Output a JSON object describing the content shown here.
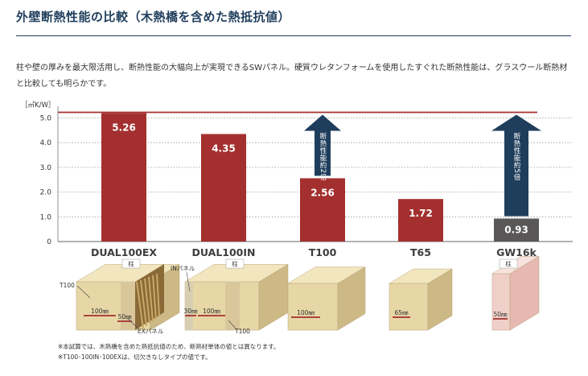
{
  "header": {
    "title": "外壁断熱性能の比較（木熱橋を含めた熱抵抗値）",
    "intro": "柱や壁の厚みを最大限活用し、断熱性能の大幅向上が実現できるSWパネル。硬質ウレタンフォームを使用したすぐれた断熱性能は、グラスウール断熱材と比較しても明らかです。"
  },
  "chart_data": {
    "type": "bar",
    "ylabel": "［㎡K/W］",
    "ylim": [
      0,
      5.2
    ],
    "yticks": [
      "0",
      "1.0",
      "2.0",
      "3.0",
      "4.0",
      "5.0"
    ],
    "grid": true,
    "reference_line": 5.26,
    "categories": [
      "DUAL100EX",
      "DUAL100IN",
      "T100",
      "T65",
      "GW16k"
    ],
    "values": [
      5.26,
      4.35,
      2.56,
      1.72,
      0.93
    ],
    "value_labels": [
      "5.26",
      "4.35",
      "2.56",
      "1.72",
      "0.93"
    ],
    "annotations": [
      {
        "target": "T100",
        "text": "断熱性能約2倍"
      },
      {
        "target": "GW16k",
        "text": "断熱性能約5倍"
      }
    ],
    "colors": {
      "bar": "#a3302f",
      "bar_gw": "#595757",
      "arrow": "#1f3e5c",
      "reference": "#a3302f"
    }
  },
  "illustrations": {
    "pillar": "柱",
    "labels": {
      "DUAL100EX": {
        "t100": "T100",
        "dim1": "100㎜",
        "dim2": "50㎜",
        "panel": "EXパネル"
      },
      "DUAL100IN": {
        "panel": "INパネル",
        "dim1": "30㎜",
        "dim2": "100㎜",
        "t100": "T100"
      },
      "T100": {
        "dim": "100㎜"
      },
      "T65": {
        "dim": "65㎜"
      },
      "GW16k": {
        "dim": "50㎜"
      }
    }
  },
  "notes": [
    "※本試算では、木熱橋を含めた熱抵抗値のため、断熱材単体の値とは異なります。",
    "※T100･100IN･100EXは、切欠きなしタイプの値です。"
  ]
}
